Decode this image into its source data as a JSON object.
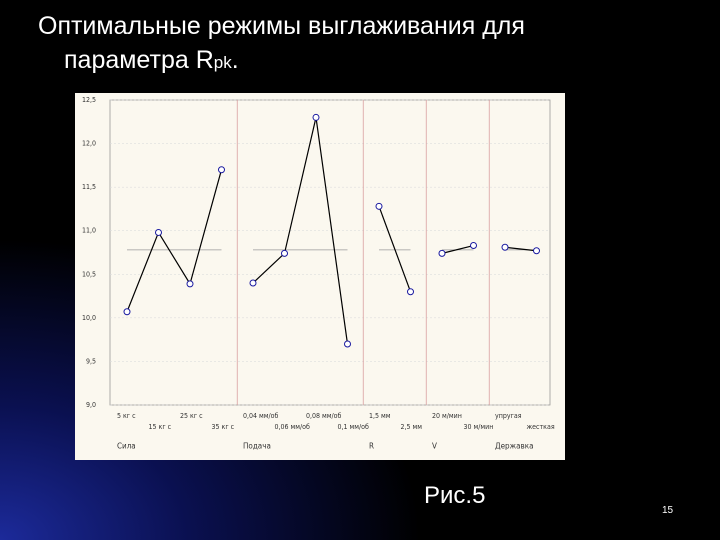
{
  "title": "Оптимальные режимы выглаживания для",
  "title_line2": "параметра R",
  "title_subscript": "pk",
  "title_end": ".",
  "caption": "Рис.5",
  "page_number": "15",
  "chart_data": {
    "type": "line",
    "ylim": [
      9.0,
      12.5
    ],
    "yticks": [
      {
        "value": 9.0,
        "label": "9,0"
      },
      {
        "value": 9.5,
        "label": "9,5"
      },
      {
        "value": 10.0,
        "label": "10,0"
      },
      {
        "value": 10.5,
        "label": "10,5"
      },
      {
        "value": 11.0,
        "label": "11,0"
      },
      {
        "value": 11.5,
        "label": "11,5"
      },
      {
        "value": 12.0,
        "label": "12,0"
      },
      {
        "value": 12.5,
        "label": "12,5"
      }
    ],
    "grid": true,
    "reference_line": 10.78,
    "line_color": "#000000",
    "marker_color": "#1a1aa0",
    "groups": [
      {
        "name": "Сила",
        "categories": [
          "5 кг с",
          "15 кг с",
          "25 кг с",
          "35 кг с"
        ],
        "values": [
          10.07,
          10.98,
          10.39,
          11.7
        ]
      },
      {
        "name": "Подача",
        "categories": [
          "0,04 мм/об",
          "0,06 мм/об",
          "0,08 мм/об",
          "0,1 мм/об"
        ],
        "values": [
          10.4,
          10.74,
          12.3,
          9.7
        ]
      },
      {
        "name": "R",
        "categories": [
          "1,5 мм",
          "2,5 мм"
        ],
        "values": [
          11.28,
          10.3
        ]
      },
      {
        "name": "V",
        "categories": [
          "20 м/мин",
          "30 м/мин"
        ],
        "values": [
          10.74,
          10.83
        ]
      },
      {
        "name": "Державка",
        "categories": [
          "упругая",
          "жесткая"
        ],
        "values": [
          10.81,
          10.77
        ]
      }
    ]
  }
}
